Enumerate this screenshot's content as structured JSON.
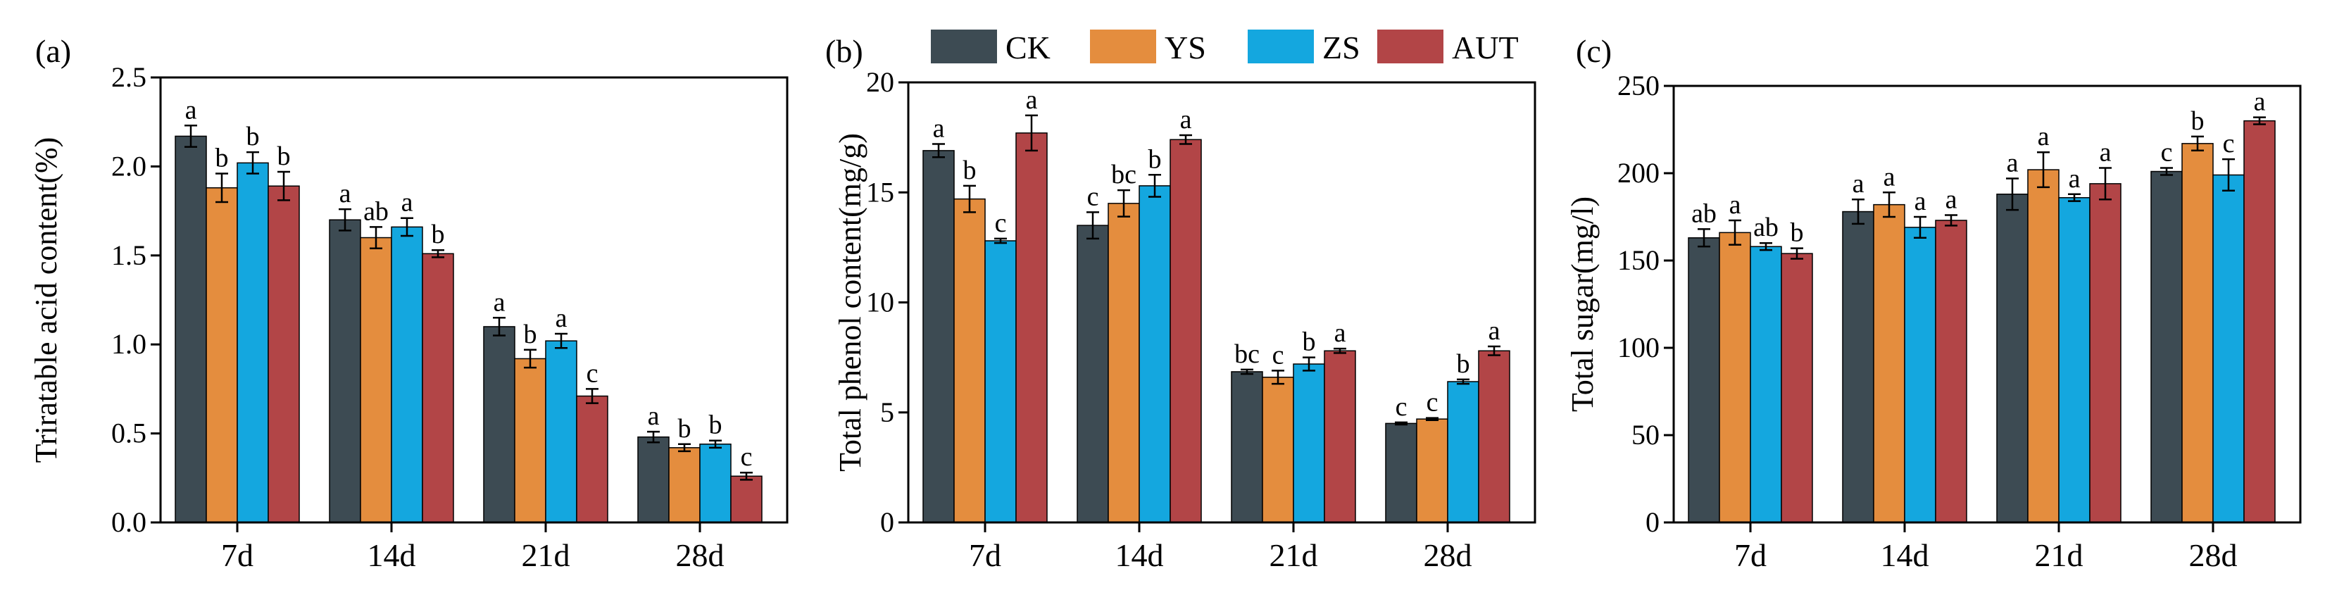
{
  "colors": {
    "CK": "#3d4b53",
    "YS": "#e48d3e",
    "ZS": "#14a7df",
    "AUT": "#b24547"
  },
  "legend": {
    "items": [
      "CK",
      "YS",
      "ZS",
      "AUT"
    ]
  },
  "chart_data": [
    {
      "type": "bar",
      "panel": "(a)",
      "title": "",
      "xlabel": "",
      "ylabel": "Triratable acid content(%)",
      "categories": [
        "7d",
        "14d",
        "21d",
        "28d"
      ],
      "ylim": [
        0,
        2.5
      ],
      "yticks": [
        0.0,
        0.5,
        1.0,
        1.5,
        2.0,
        2.5
      ],
      "ytick_labels": [
        "0.0",
        "0.5",
        "1.0",
        "1.5",
        "2.0",
        "2.5"
      ],
      "series": [
        {
          "name": "CK",
          "values": [
            2.17,
            1.7,
            1.1,
            0.48
          ],
          "errors": [
            0.06,
            0.06,
            0.05,
            0.03
          ],
          "letters": [
            "a",
            "a",
            "a",
            "a"
          ]
        },
        {
          "name": "YS",
          "values": [
            1.88,
            1.6,
            0.92,
            0.42
          ],
          "errors": [
            0.08,
            0.06,
            0.05,
            0.02
          ],
          "letters": [
            "b",
            "ab",
            "b",
            "b"
          ]
        },
        {
          "name": "ZS",
          "values": [
            2.02,
            1.66,
            1.02,
            0.44
          ],
          "errors": [
            0.06,
            0.05,
            0.04,
            0.02
          ],
          "letters": [
            "b",
            "a",
            "a",
            "b"
          ]
        },
        {
          "name": "AUT",
          "values": [
            1.89,
            1.51,
            0.71,
            0.26
          ],
          "errors": [
            0.08,
            0.02,
            0.04,
            0.02
          ],
          "letters": [
            "b",
            "b",
            "c",
            "c"
          ]
        }
      ]
    },
    {
      "type": "bar",
      "panel": "(b)",
      "title": "",
      "xlabel": "",
      "ylabel": "Total phenol content(mg/g)",
      "categories": [
        "7d",
        "14d",
        "21d",
        "28d"
      ],
      "ylim": [
        0,
        20
      ],
      "yticks": [
        0,
        5,
        10,
        15,
        20
      ],
      "ytick_labels": [
        "0",
        "5",
        "10",
        "15",
        "20"
      ],
      "series": [
        {
          "name": "CK",
          "values": [
            16.9,
            13.5,
            6.85,
            4.5
          ],
          "errors": [
            0.3,
            0.6,
            0.1,
            0.05
          ],
          "letters": [
            "a",
            "c",
            "bc",
            "c"
          ]
        },
        {
          "name": "YS",
          "values": [
            14.7,
            14.5,
            6.6,
            4.7
          ],
          "errors": [
            0.6,
            0.6,
            0.3,
            0.05
          ],
          "letters": [
            "b",
            "bc",
            "c",
            "c"
          ]
        },
        {
          "name": "ZS",
          "values": [
            12.8,
            15.3,
            7.2,
            6.4
          ],
          "errors": [
            0.1,
            0.5,
            0.3,
            0.1
          ],
          "letters": [
            "c",
            "b",
            "b",
            "b"
          ]
        },
        {
          "name": "AUT",
          "values": [
            17.7,
            17.4,
            7.8,
            7.8
          ],
          "errors": [
            0.8,
            0.2,
            0.1,
            0.2
          ],
          "letters": [
            "a",
            "a",
            "a",
            "a"
          ]
        }
      ]
    },
    {
      "type": "bar",
      "panel": "(c)",
      "title": "",
      "xlabel": "",
      "ylabel": "Total sugar(mg/l)",
      "categories": [
        "7d",
        "14d",
        "21d",
        "28d"
      ],
      "ylim": [
        0,
        250
      ],
      "yticks": [
        0,
        50,
        100,
        150,
        200,
        250
      ],
      "ytick_labels": [
        "0",
        "50",
        "100",
        "150",
        "200",
        "250"
      ],
      "series": [
        {
          "name": "CK",
          "values": [
            163,
            178,
            188,
            201
          ],
          "errors": [
            5,
            7,
            9,
            2
          ],
          "letters": [
            "ab",
            "a",
            "a",
            "c"
          ]
        },
        {
          "name": "YS",
          "values": [
            166,
            182,
            202,
            217
          ],
          "errors": [
            7,
            7,
            10,
            4
          ],
          "letters": [
            "a",
            "a",
            "a",
            "b"
          ]
        },
        {
          "name": "ZS",
          "values": [
            158,
            169,
            186,
            199
          ],
          "errors": [
            2,
            6,
            2,
            9
          ],
          "letters": [
            "ab",
            "a",
            "a",
            "c"
          ]
        },
        {
          "name": "AUT",
          "values": [
            154,
            173,
            194,
            230
          ],
          "errors": [
            3,
            3,
            9,
            2
          ],
          "letters": [
            "b",
            "a",
            "a",
            "a"
          ]
        }
      ]
    }
  ]
}
